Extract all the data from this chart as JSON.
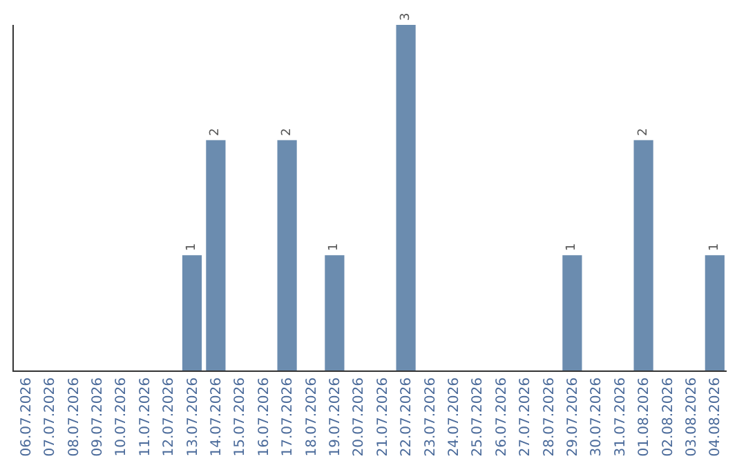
{
  "chart_data": {
    "type": "bar",
    "categories": [
      "06.07.2026",
      "07.07.2026",
      "08.07.2026",
      "09.07.2026",
      "10.07.2026",
      "11.07.2026",
      "12.07.2026",
      "13.07.2026",
      "14.07.2026",
      "15.07.2026",
      "16.07.2026",
      "17.07.2026",
      "18.07.2026",
      "19.07.2026",
      "20.07.2026",
      "21.07.2026",
      "22.07.2026",
      "23.07.2026",
      "24.07.2026",
      "25.07.2026",
      "26.07.2026",
      "27.07.2026",
      "28.07.2026",
      "29.07.2026",
      "30.07.2026",
      "31.07.2026",
      "01.08.2026",
      "02.08.2026",
      "03.08.2026",
      "04.08.2026"
    ],
    "values": [
      0,
      0,
      0,
      0,
      0,
      0,
      0,
      1,
      2,
      0,
      0,
      2,
      0,
      1,
      0,
      0,
      3,
      0,
      0,
      0,
      0,
      0,
      0,
      1,
      0,
      0,
      2,
      0,
      0,
      1
    ],
    "value_labels": [
      null,
      null,
      null,
      null,
      null,
      null,
      null,
      "1",
      "2",
      null,
      null,
      "2",
      null,
      "1",
      null,
      null,
      "3",
      null,
      null,
      null,
      null,
      null,
      null,
      "1",
      null,
      null,
      "2",
      null,
      null,
      "1"
    ],
    "color": "#6b8caf",
    "ylim": [
      0,
      3
    ],
    "tick_labels": "x",
    "legend": false
  }
}
